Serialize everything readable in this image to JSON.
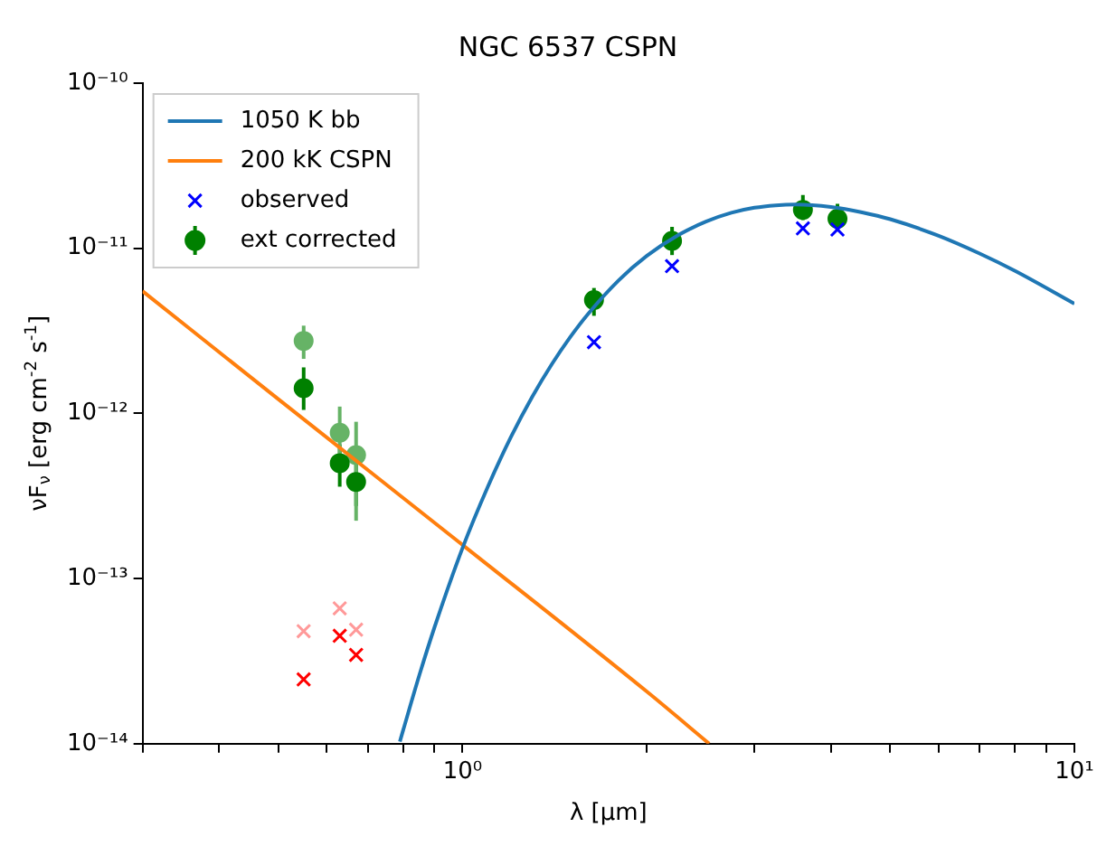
{
  "chart_data": {
    "type": "scatter",
    "title": "NGC 6537 CSPN",
    "xlabel": "λ [μm]",
    "ylabel": "νF$_{ν}$ [erg cm$^{-2}$ s$^{-1}$]",
    "log": "xy",
    "legend": "top left",
    "grid": false,
    "xlim": [
      0.3,
      10
    ],
    "ylim": [
      1e-14,
      1e-10
    ],
    "xticks": [
      {
        "value": 0.3,
        "label": null
      },
      {
        "value": 0.4,
        "label": null
      },
      {
        "value": 0.5,
        "label": null
      },
      {
        "value": 0.6,
        "label": null
      },
      {
        "value": 0.7,
        "label": null
      },
      {
        "value": 0.8,
        "label": null
      },
      {
        "value": 0.9,
        "label": null
      },
      {
        "value": 1,
        "label": "10⁰"
      },
      {
        "value": 2,
        "label": null
      },
      {
        "value": 3,
        "label": null
      },
      {
        "value": 4,
        "label": null
      },
      {
        "value": 5,
        "label": null
      },
      {
        "value": 6,
        "label": null
      },
      {
        "value": 7,
        "label": null
      },
      {
        "value": 8,
        "label": null
      },
      {
        "value": 9,
        "label": null
      },
      {
        "value": 10,
        "label": "10¹"
      }
    ],
    "yticks": [
      {
        "value": 1e-14,
        "label": "10⁻¹⁴"
      },
      {
        "value": 1e-13,
        "label": "10⁻¹³"
      },
      {
        "value": 1e-12,
        "label": "10⁻¹²"
      },
      {
        "value": 1e-11,
        "label": "10⁻¹¹"
      },
      {
        "value": 1e-10,
        "label": "10⁻¹⁰"
      }
    ],
    "series": [
      {
        "name": "1050 K bb",
        "type": "line",
        "color": "#1f77b4",
        "marker": "none",
        "x": [
          0.79,
          0.8,
          0.85,
          0.9,
          1.0,
          1.1,
          1.2,
          1.3,
          1.4,
          1.5,
          1.6,
          1.8,
          2.0,
          2.25,
          2.5,
          2.75,
          3.0,
          3.25,
          3.5,
          4.0,
          4.5,
          5.0,
          6.0,
          7.0,
          8.0,
          10
        ],
        "values": [
          1.03e-14,
          1.21e-14,
          2.6e-14,
          5.07e-14,
          1.53e-13,
          3.6e-13,
          7.2e-13,
          1.26e-12,
          1.99e-12,
          2.9e-12,
          3.96e-12,
          6.4e-12,
          8.99e-12,
          1.2e-11,
          1.45e-11,
          1.64e-11,
          1.76e-11,
          1.82e-11,
          1.84e-11,
          1.78e-11,
          1.65e-11,
          1.5e-11,
          1.19e-11,
          9.29e-12,
          7.29e-12,
          4.62e-12
        ]
      },
      {
        "name": "200 kK CSPN",
        "type": "line",
        "color": "#ff7f0e",
        "marker": "none",
        "x": [
          0.3,
          0.5,
          1,
          2,
          2.53
        ],
        "values": [
          5.5e-12,
          1.22e-12,
          1.6e-13,
          2.07e-14,
          1e-14
        ]
      },
      {
        "name": "observed",
        "type": "scatter",
        "color": "#0000ff",
        "marker": "cross",
        "x": [
          1.64,
          2.2,
          3.6,
          4.1
        ],
        "values": [
          2.7e-12,
          7.8e-12,
          1.32e-11,
          1.3e-11
        ]
      },
      {
        "type": "scatter",
        "color": "#ff0000",
        "marker": "cross",
        "x": [
          0.55,
          0.63,
          0.67
        ],
        "values": [
          2.45e-14,
          4.5e-14,
          3.45e-14
        ]
      },
      {
        "type": "scatter",
        "color": "#ff9999",
        "marker": "cross",
        "x": [
          0.55,
          0.63,
          0.67
        ],
        "values": [
          4.8e-14,
          6.6e-14,
          4.9e-14
        ]
      },
      {
        "name": "ext corrected",
        "type": "scatter",
        "color": "#008000",
        "marker": "circle",
        "x": [
          0.55,
          0.63,
          0.67,
          1.64,
          2.2,
          3.6,
          4.1
        ],
        "values": [
          1.42e-12,
          5e-13,
          3.85e-13,
          4.86e-12,
          1.11e-11,
          1.71e-11,
          1.51e-11
        ],
        "errors": [
          [
            1.05e-12,
            1.9e-12
          ],
          [
            3.6e-13,
            6.5e-13
          ],
          [
            2.75e-13,
            5.4e-13
          ],
          [
            3.9e-12,
            5.75e-12
          ],
          [
            9.1e-12,
            1.35e-11
          ],
          [
            1.48e-11,
            2.1e-11
          ],
          [
            1.29e-11,
            1.86e-11
          ]
        ]
      },
      {
        "type": "scatter",
        "color": "#66b366",
        "marker": "circle",
        "x": [
          0.55,
          0.63,
          0.67
        ],
        "values": [
          2.75e-12,
          7.65e-13,
          5.6e-13
        ],
        "errors": [
          [
            2.14e-12,
            3.4e-12
          ],
          [
            5.4e-13,
            1.1e-12
          ],
          [
            2.24e-13,
            8.9e-13
          ]
        ]
      }
    ]
  }
}
